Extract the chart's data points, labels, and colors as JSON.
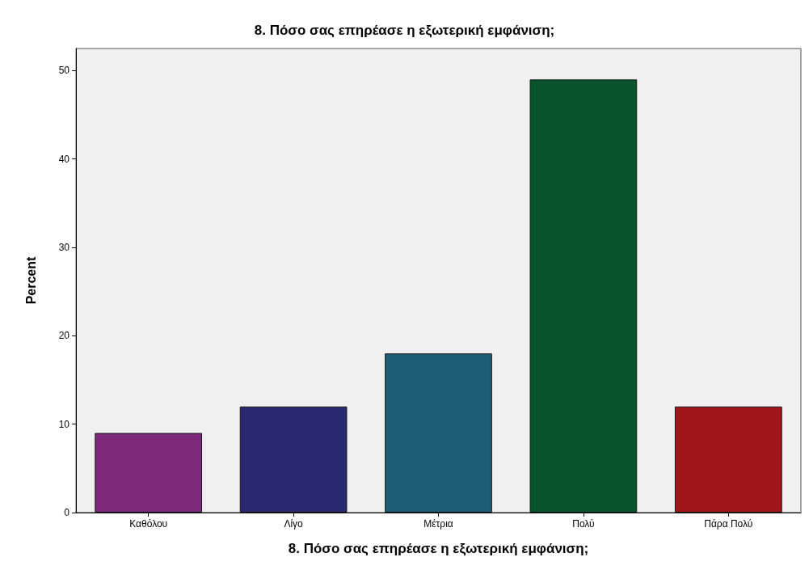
{
  "chart_data": {
    "type": "bar",
    "title": "8. Πόσο σας επηρέασε η εξωτερική εμφάνιση;",
    "xlabel": "8. Πόσο σας επηρέασε η εξωτερική εμφάνιση;",
    "ylabel": "Percent",
    "categories": [
      "Καθόλου",
      "Λίγο",
      "Μέτρια",
      "Πολύ",
      "Πάρα Πολύ"
    ],
    "values": [
      9,
      12,
      18,
      49,
      12
    ],
    "colors": [
      "#7d287b",
      "#2a2a73",
      "#1d5e76",
      "#0a542d",
      "#a0161b"
    ],
    "ylim": [
      0,
      52.5
    ],
    "yticks": [
      0,
      10,
      20,
      30,
      40,
      50
    ],
    "grid": false
  }
}
